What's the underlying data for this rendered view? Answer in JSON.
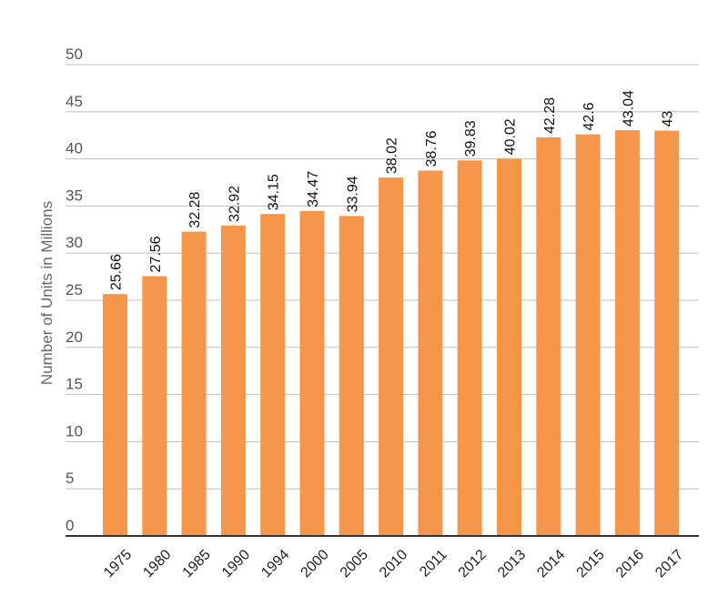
{
  "chart_data": {
    "type": "bar",
    "title": "",
    "xlabel": "",
    "ylabel": "Number of Units in Millions",
    "ylim": [
      0,
      50
    ],
    "yticks": [
      0,
      5,
      10,
      15,
      20,
      25,
      30,
      35,
      40,
      45,
      50
    ],
    "grid": true,
    "categories": [
      "1975",
      "1980",
      "1985",
      "1990",
      "1994",
      "2000",
      "2005",
      "2010",
      "2011",
      "2012",
      "2013",
      "2014",
      "2015",
      "2016",
      "2017"
    ],
    "values": [
      25.66,
      27.56,
      32.28,
      32.92,
      34.15,
      34.47,
      33.94,
      38.02,
      38.76,
      39.83,
      40.02,
      42.28,
      42.6,
      43.04,
      43
    ],
    "data_labels": [
      "25.66",
      "27.56",
      "32.28",
      "32.92",
      "34.15",
      "34.47",
      "33.94",
      "38.02",
      "38.76",
      "39.83",
      "40.02",
      "42.28",
      "42.6",
      "43.04",
      "43"
    ],
    "bar_color": "#F5964A"
  }
}
